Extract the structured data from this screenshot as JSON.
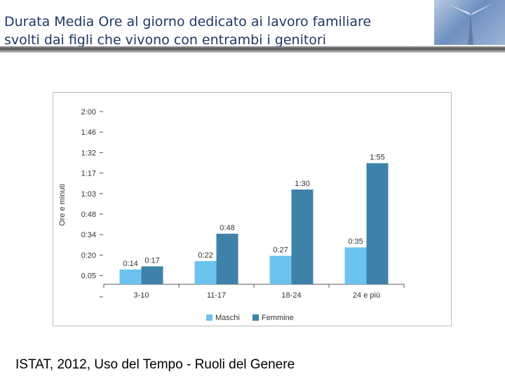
{
  "slide": {
    "title_line1": "Durata Media Ore al giorno dedicato ai lavoro familiare",
    "title_line2": "svolti dai figli che vivono con entrambi i genitori",
    "source": "ISTAT, 2012, Uso del Tempo - Ruoli del Genere"
  },
  "colors": {
    "maschi": "#6cc3ee",
    "femmine": "#3e82aa",
    "title": "#1f3864"
  },
  "chart_data": {
    "type": "bar",
    "categories": [
      "3-10",
      "11-17",
      "18-24",
      "24 e più"
    ],
    "ylabel": "Ore e minuti",
    "y_tick_labels": [
      "2:00",
      "1:46",
      "1:32",
      "1:17",
      "1:03",
      "0:48",
      "0:34",
      "0:20",
      "0.05"
    ],
    "series": [
      {
        "name": "Maschi",
        "values": [
          14,
          22,
          27,
          35
        ],
        "labels": [
          "0:14",
          "0:22",
          "0:27",
          "0:35"
        ]
      },
      {
        "name": "Femmine",
        "values": [
          17,
          48,
          90,
          115
        ],
        "labels": [
          "0:17",
          "0:48",
          "1:30",
          "1:55"
        ]
      }
    ],
    "legend_position": "bottom",
    "grid": false
  }
}
